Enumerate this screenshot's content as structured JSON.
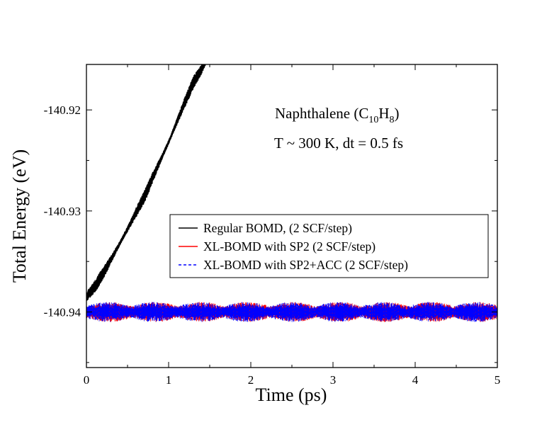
{
  "chart_data": {
    "type": "line",
    "title": "",
    "xlabel": "Time (ps)",
    "ylabel": "Total Energy (eV)",
    "xlim": [
      0,
      5
    ],
    "ylim": [
      -140.9455,
      -140.9155
    ],
    "x_ticks": [
      0,
      1,
      2,
      3,
      4,
      5
    ],
    "x_tick_labels": [
      "0",
      "1",
      "2",
      "3",
      "4",
      "5"
    ],
    "y_ticks": [
      -140.94,
      -140.93,
      -140.92
    ],
    "y_tick_labels": [
      "-140.94",
      "-140.93",
      "-140.92"
    ],
    "grid": false,
    "legend_position": "center-right",
    "annotations": {
      "line1_prefix": "Naphthalene (C",
      "line1_sub1": "10",
      "line1_mid": "H",
      "line1_sub2": "8",
      "line1_suffix": ")",
      "line2": "T ~ 300 K, dt = 0.5 fs"
    },
    "series": [
      {
        "name": "Regular BOMD, (2 SCF/step)",
        "color": "#000000",
        "dash": "solid",
        "x": [
          0.0,
          0.1,
          0.2,
          0.3,
          0.4,
          0.5,
          0.6,
          0.7,
          0.8,
          0.9,
          1.0,
          1.1,
          1.2,
          1.3,
          1.4,
          1.45
        ],
        "y": [
          -140.9385,
          -140.9375,
          -140.9362,
          -140.9348,
          -140.9333,
          -140.9318,
          -140.9302,
          -140.9287,
          -140.9268,
          -140.925,
          -140.9232,
          -140.9212,
          -140.9192,
          -140.9173,
          -140.916,
          -140.9152
        ]
      },
      {
        "name": "XL-BOMD with SP2 (2 SCF/step)",
        "color": "#ff0000",
        "dash": "solid",
        "x": [
          0,
          5
        ],
        "y": [
          -140.94,
          -140.94
        ]
      },
      {
        "name": "XL-BOMD with SP2+ACC (2 SCF/step)",
        "color": "#0000ff",
        "dash": "dashed",
        "x": [
          0,
          5
        ],
        "y": [
          -140.94,
          -140.94
        ]
      }
    ]
  }
}
